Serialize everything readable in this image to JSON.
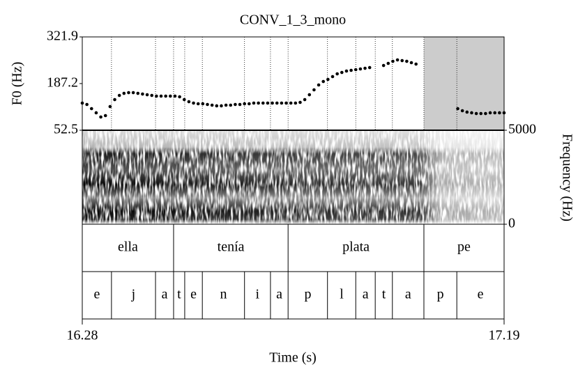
{
  "chart_data": {
    "type": "scatter",
    "title": "CONV_1_3_mono",
    "x_label": "Time (s)",
    "y_label": "F0 (Hz)",
    "y2_label": "Frequency (Hz)",
    "xlim": [
      16.28,
      17.19
    ],
    "xticks": [
      16.28,
      17.19
    ],
    "ylim": [
      52.5,
      321.9
    ],
    "yticks": [
      52.5,
      187.2,
      321.9
    ],
    "y2lim": [
      0,
      5000
    ],
    "y2ticks": [
      0,
      5000
    ],
    "color": "#000000",
    "shaded": [
      17.017,
      17.19
    ],
    "x": [
      16.28,
      16.29,
      16.3,
      16.31,
      16.32,
      16.33,
      16.34,
      16.35,
      16.36,
      16.37,
      16.38,
      16.39,
      16.4,
      16.41,
      16.42,
      16.43,
      16.44,
      16.45,
      16.46,
      16.47,
      16.48,
      16.49,
      16.5,
      16.51,
      16.52,
      16.53,
      16.54,
      16.55,
      16.56,
      16.57,
      16.58,
      16.59,
      16.6,
      16.61,
      16.62,
      16.63,
      16.64,
      16.65,
      16.66,
      16.67,
      16.68,
      16.69,
      16.7,
      16.71,
      16.72,
      16.73,
      16.74,
      16.75,
      16.76,
      16.77,
      16.78,
      16.79,
      16.8,
      16.81,
      16.82,
      16.83,
      16.84,
      16.85,
      16.86,
      16.87,
      16.88,
      16.89,
      16.9,
      16.93,
      16.94,
      16.95,
      16.96,
      16.97,
      16.98,
      16.99,
      17.0,
      17.09,
      17.1,
      17.11,
      17.12,
      17.13,
      17.14,
      17.15,
      17.16,
      17.17,
      17.18,
      17.19
    ],
    "values": [
      130.9,
      126.9,
      114.8,
      102.8,
      90.7,
      94.7,
      120.8,
      140.9,
      153.0,
      159.0,
      161.0,
      161.0,
      159.0,
      157.0,
      155.0,
      153.0,
      151.0,
      151.0,
      151.0,
      151.0,
      151.0,
      149.0,
      140.9,
      134.9,
      130.9,
      128.9,
      128.9,
      126.9,
      124.9,
      122.9,
      122.9,
      124.9,
      124.9,
      126.9,
      126.9,
      128.9,
      128.9,
      130.9,
      130.9,
      130.9,
      130.9,
      130.9,
      130.9,
      130.9,
      130.9,
      130.9,
      130.9,
      132.9,
      140.9,
      155.0,
      169.1,
      183.2,
      193.2,
      199.2,
      207.3,
      215.3,
      219.3,
      223.4,
      225.4,
      227.4,
      229.4,
      231.4,
      233.4,
      239.4,
      245.5,
      251.5,
      255.5,
      253.5,
      251.5,
      247.5,
      243.5,
      114.8,
      108.8,
      104.8,
      102.8,
      100.7,
      100.7,
      100.7,
      102.8,
      102.8,
      102.8,
      102.8
    ],
    "tiers": [
      {
        "boundaries": [
          16.477,
          16.724,
          17.017
        ],
        "labels": [
          "ella",
          "tenía",
          "plata",
          "pe"
        ]
      },
      {
        "boundaries": [
          16.343,
          16.438,
          16.477,
          16.501,
          16.539,
          16.63,
          16.686,
          16.724,
          16.809,
          16.87,
          16.912,
          16.949,
          17.017,
          17.088
        ],
        "labels": [
          "e",
          "j",
          "a",
          "t",
          "e",
          "n",
          "i",
          "a",
          "p",
          "l",
          "a",
          "t",
          "a",
          "p",
          "e"
        ]
      }
    ]
  }
}
